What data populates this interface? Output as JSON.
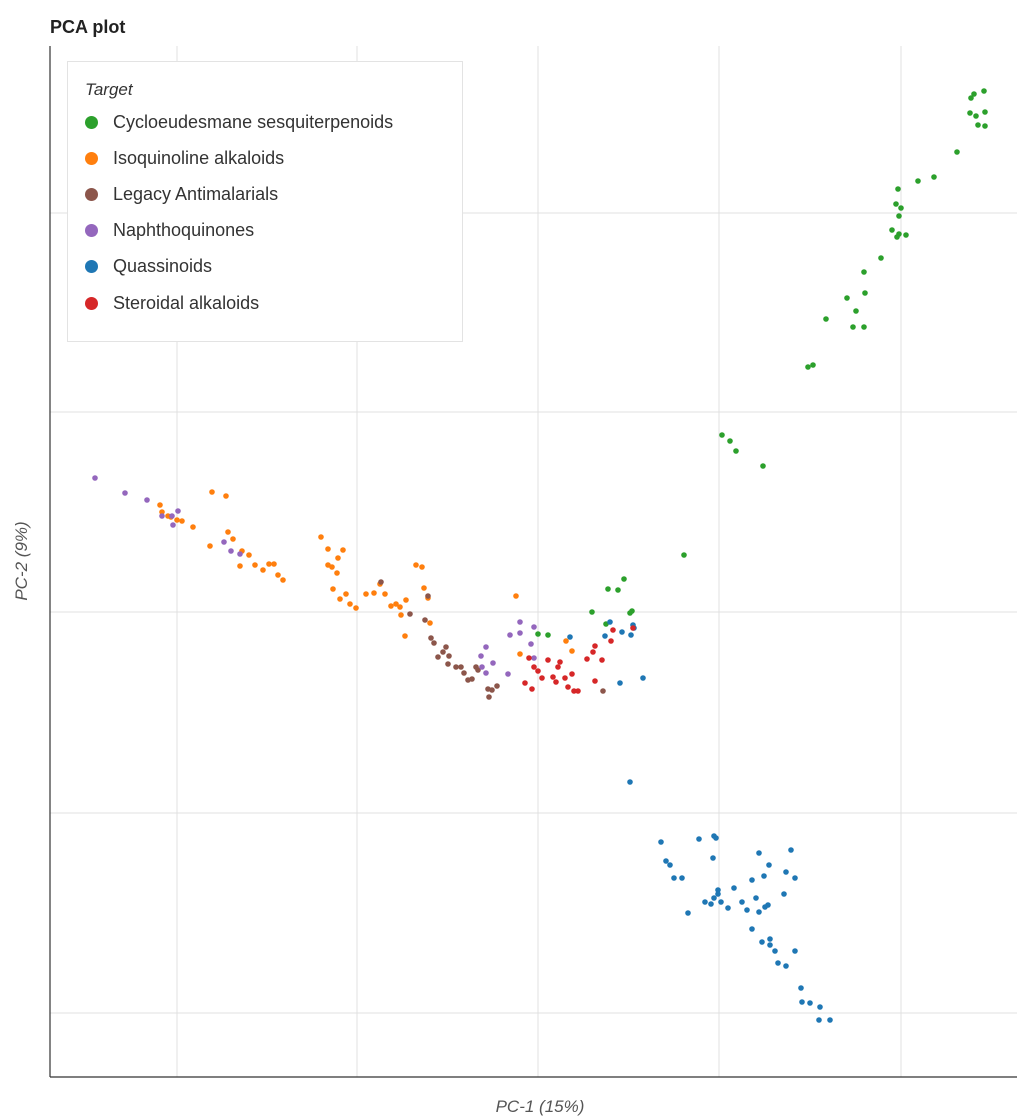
{
  "chart_data": {
    "type": "scatter",
    "title": "PCA plot",
    "xlabel": "PC-1 (15%)",
    "ylabel": "PC-2 (9%)",
    "xlim": [
      0,
      1000
    ],
    "ylim": [
      -1000,
      0
    ],
    "x_ticks": [
      127,
      307,
      488,
      669,
      851
    ],
    "y_ticks": [
      -167,
      -366,
      -566,
      -767,
      -967
    ],
    "grid": true,
    "legend": {
      "title": "Target",
      "placement": "top-left"
    },
    "series": [
      {
        "name": "Cycloeudesmane sesquiterpenoids",
        "color": "#2ca02c",
        "points": [
          [
            921,
            -52
          ],
          [
            924,
            -48
          ],
          [
            934,
            -45
          ],
          [
            920,
            -67
          ],
          [
            926,
            -70
          ],
          [
            935,
            -66
          ],
          [
            928,
            -79
          ],
          [
            935,
            -80
          ],
          [
            907,
            -106
          ],
          [
            884,
            -131
          ],
          [
            868,
            -135
          ],
          [
            848,
            -143
          ],
          [
            846,
            -158
          ],
          [
            851,
            -162
          ],
          [
            849,
            -170
          ],
          [
            842,
            -184
          ],
          [
            849,
            -188
          ],
          [
            856,
            -189
          ],
          [
            847,
            -191
          ],
          [
            831,
            -212
          ],
          [
            814,
            -226
          ],
          [
            815,
            -247
          ],
          [
            797,
            -252
          ],
          [
            806,
            -265
          ],
          [
            776,
            -273
          ],
          [
            814,
            -281
          ],
          [
            803,
            -281
          ],
          [
            763,
            -319
          ],
          [
            758,
            -321
          ],
          [
            672,
            -389
          ],
          [
            680,
            -395
          ],
          [
            686,
            -405
          ],
          [
            713,
            -420
          ],
          [
            634,
            -509
          ],
          [
            574,
            -533
          ],
          [
            558,
            -543
          ],
          [
            568,
            -544
          ],
          [
            580,
            -567
          ],
          [
            582,
            -565
          ],
          [
            542,
            -566
          ],
          [
            556,
            -578
          ],
          [
            488,
            -588
          ],
          [
            498,
            -589
          ]
        ]
      },
      {
        "name": "Isoquinoline alkaloids",
        "color": "#ff7f0e",
        "points": [
          [
            110,
            -459
          ],
          [
            112,
            -466
          ],
          [
            118,
            -470
          ],
          [
            121,
            -471
          ],
          [
            127,
            -474
          ],
          [
            132,
            -475
          ],
          [
            143,
            -481
          ],
          [
            162,
            -446
          ],
          [
            176,
            -450
          ],
          [
            160,
            -500
          ],
          [
            178,
            -486
          ],
          [
            183,
            -493
          ],
          [
            192,
            -505
          ],
          [
            199,
            -509
          ],
          [
            190,
            -520
          ],
          [
            205,
            -519
          ],
          [
            213,
            -524
          ],
          [
            219,
            -518
          ],
          [
            224,
            -518
          ],
          [
            228,
            -529
          ],
          [
            233,
            -534
          ],
          [
            271,
            -491
          ],
          [
            278,
            -503
          ],
          [
            282,
            -521
          ],
          [
            288,
            -512
          ],
          [
            293,
            -504
          ],
          [
            278,
            -519
          ],
          [
            287,
            -527
          ],
          [
            283,
            -543
          ],
          [
            290,
            -553
          ],
          [
            296,
            -548
          ],
          [
            300,
            -558
          ],
          [
            306,
            -562
          ],
          [
            316,
            -548
          ],
          [
            324,
            -547
          ],
          [
            330,
            -538
          ],
          [
            335,
            -548
          ],
          [
            341,
            -560
          ],
          [
            346,
            -558
          ],
          [
            350,
            -561
          ],
          [
            356,
            -554
          ],
          [
            366,
            -519
          ],
          [
            372,
            -521
          ],
          [
            374,
            -542
          ],
          [
            378,
            -552
          ],
          [
            351,
            -569
          ],
          [
            355,
            -590
          ],
          [
            380,
            -577
          ],
          [
            466,
            -550
          ],
          [
            470,
            -608
          ],
          [
            516,
            -595
          ],
          [
            522,
            -605
          ]
        ]
      },
      {
        "name": "Legacy Antimalarials",
        "color": "#8c564b",
        "points": [
          [
            331,
            -536
          ],
          [
            360,
            -568
          ],
          [
            375,
            -574
          ],
          [
            378,
            -550
          ],
          [
            381,
            -592
          ],
          [
            384,
            -597
          ],
          [
            388,
            -611
          ],
          [
            393,
            -606
          ],
          [
            396,
            -601
          ],
          [
            399,
            -610
          ],
          [
            398,
            -618
          ],
          [
            406,
            -621
          ],
          [
            411,
            -621
          ],
          [
            414,
            -627
          ],
          [
            418,
            -634
          ],
          [
            422,
            -633
          ],
          [
            426,
            -621
          ],
          [
            428,
            -624
          ],
          [
            438,
            -643
          ],
          [
            439,
            -651
          ],
          [
            442,
            -644
          ],
          [
            447,
            -640
          ],
          [
            553,
            -645
          ]
        ]
      },
      {
        "name": "Naphthoquinones",
        "color": "#9467bd",
        "points": [
          [
            45,
            -432
          ],
          [
            75,
            -447
          ],
          [
            97,
            -454
          ],
          [
            112,
            -470
          ],
          [
            122,
            -470
          ],
          [
            128,
            -465
          ],
          [
            123,
            -479
          ],
          [
            174,
            -496
          ],
          [
            181,
            -505
          ],
          [
            190,
            -508
          ],
          [
            431,
            -610
          ],
          [
            436,
            -601
          ],
          [
            432,
            -621
          ],
          [
            443,
            -617
          ],
          [
            460,
            -589
          ],
          [
            470,
            -576
          ],
          [
            481,
            -598
          ],
          [
            484,
            -581
          ],
          [
            436,
            -627
          ],
          [
            458,
            -628
          ],
          [
            470,
            -587
          ],
          [
            484,
            -612
          ]
        ]
      },
      {
        "name": "Quassinoids",
        "color": "#1f77b4",
        "points": [
          [
            555,
            -590
          ],
          [
            560,
            -576
          ],
          [
            570,
            -637
          ],
          [
            593,
            -632
          ],
          [
            581,
            -589
          ],
          [
            572,
            -586
          ],
          [
            583,
            -579
          ],
          [
            584,
            -582
          ],
          [
            520,
            -591
          ],
          [
            580,
            -736
          ],
          [
            611,
            -796
          ],
          [
            616,
            -815
          ],
          [
            620,
            -819
          ],
          [
            624,
            -832
          ],
          [
            632,
            -832
          ],
          [
            638,
            -867
          ],
          [
            649,
            -793
          ],
          [
            664,
            -790
          ],
          [
            663,
            -812
          ],
          [
            666,
            -792
          ],
          [
            668,
            -844
          ],
          [
            664,
            -852
          ],
          [
            655,
            -856
          ],
          [
            661,
            -858
          ],
          [
            668,
            -848
          ],
          [
            671,
            -856
          ],
          [
            678,
            -862
          ],
          [
            684,
            -842
          ],
          [
            692,
            -856
          ],
          [
            697,
            -864
          ],
          [
            702,
            -883
          ],
          [
            709,
            -866
          ],
          [
            706,
            -852
          ],
          [
            715,
            -861
          ],
          [
            720,
            -893
          ],
          [
            720,
            -899
          ],
          [
            725,
            -905
          ],
          [
            728,
            -917
          ],
          [
            736,
            -920
          ],
          [
            745,
            -905
          ],
          [
            751,
            -942
          ],
          [
            752,
            -956
          ],
          [
            760,
            -957
          ],
          [
            770,
            -961
          ],
          [
            769,
            -974
          ],
          [
            780,
            -974
          ],
          [
            702,
            -834
          ],
          [
            709,
            -807
          ],
          [
            741,
            -804
          ],
          [
            736,
            -826
          ],
          [
            734,
            -848
          ],
          [
            745,
            -832
          ],
          [
            719,
            -819
          ],
          [
            714,
            -830
          ],
          [
            718,
            -859
          ],
          [
            712,
            -896
          ]
        ]
      },
      {
        "name": "Steroidal alkaloids",
        "color": "#d62728",
        "points": [
          [
            475,
            -637
          ],
          [
            479,
            -612
          ],
          [
            484,
            -621
          ],
          [
            482,
            -643
          ],
          [
            488,
            -625
          ],
          [
            492,
            -632
          ],
          [
            498,
            -614
          ],
          [
            503,
            -631
          ],
          [
            506,
            -636
          ],
          [
            508,
            -621
          ],
          [
            510,
            -616
          ],
          [
            515,
            -632
          ],
          [
            518,
            -641
          ],
          [
            522,
            -628
          ],
          [
            524,
            -645
          ],
          [
            528,
            -645
          ],
          [
            537,
            -613
          ],
          [
            543,
            -606
          ],
          [
            545,
            -600
          ],
          [
            552,
            -614
          ],
          [
            561,
            -595
          ],
          [
            563,
            -584
          ],
          [
            583,
            -582
          ],
          [
            545,
            -635
          ]
        ]
      }
    ]
  }
}
